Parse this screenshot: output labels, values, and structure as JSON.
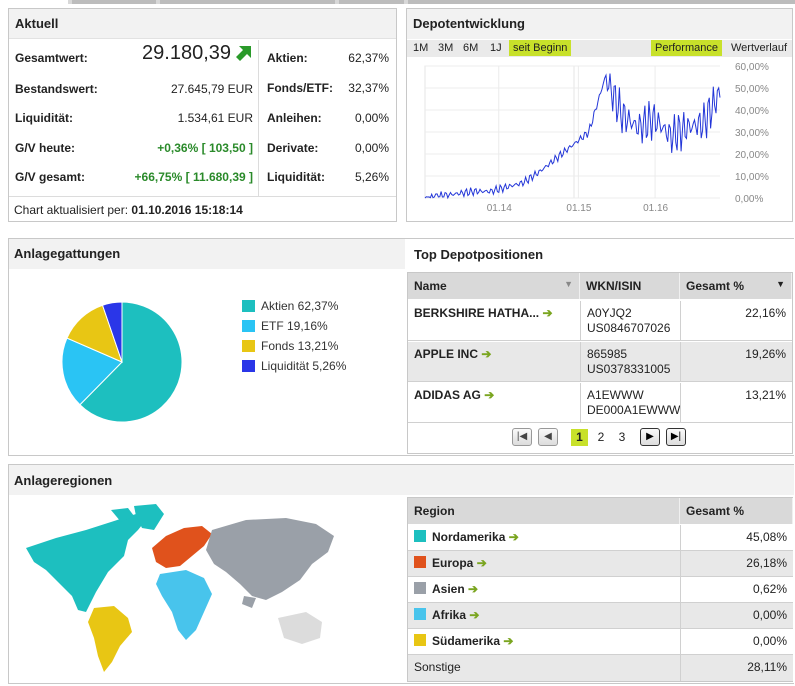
{
  "aktuell": {
    "title": "Aktuell",
    "gesamtwert_label": "Gesamtwert:",
    "gesamtwert_value": "29.180,39",
    "bestandswert_label": "Bestandswert:",
    "bestandswert_value": "27.645,79 EUR",
    "liquiditaet_label": "Liquidität:",
    "liquiditaet_value": "1.534,61 EUR",
    "gv_heute_label": "G/V heute:",
    "gv_heute_pct": "+0,36%",
    "gv_heute_abs": "[ 103,50 ]",
    "gv_gesamt_label": "G/V gesamt:",
    "gv_gesamt_pct": "+66,75%",
    "gv_gesamt_abs": "[ 11.680,39 ]",
    "alloc": [
      {
        "label": "Aktien:",
        "value": "62,37%"
      },
      {
        "label": "Fonds/ETF:",
        "value": "32,37%"
      },
      {
        "label": "Anleihen:",
        "value": "0,00%"
      },
      {
        "label": "Derivate:",
        "value": "0,00%"
      },
      {
        "label": "Liquidität:",
        "value": "5,26%"
      }
    ],
    "chart_updated_label": "Chart aktualisiert per:",
    "chart_updated_value": "01.10.2016 15:18:14"
  },
  "depotentwicklung": {
    "title": "Depotentwicklung",
    "periods": [
      "1M",
      "3M",
      "6M",
      "1J",
      "seit Beginn"
    ],
    "active_period": "seit Beginn",
    "modes": [
      "Performance",
      "Wertverlauf"
    ],
    "active_mode": "Performance",
    "y_ticks": [
      "60,00%",
      "50,00%",
      "40,00%",
      "30,00%",
      "20,00%",
      "10,00%",
      "0,00%"
    ],
    "x_ticks": [
      "01.14",
      "01.15",
      "01.16"
    ]
  },
  "anlagegattungen": {
    "title": "Anlagegattungen",
    "items": [
      {
        "label": "Aktien 62,37%",
        "color": "#1dbfbf"
      },
      {
        "label": "ETF 19,16%",
        "color": "#2ac4f4"
      },
      {
        "label": "Fonds 13,21%",
        "color": "#e8c614"
      },
      {
        "label": "Liquidität 5,26%",
        "color": "#2a36e8"
      }
    ]
  },
  "chart_data": [
    {
      "type": "pie",
      "title": "Anlagegattungen",
      "categories": [
        "Aktien",
        "ETF",
        "Fonds",
        "Liquidität"
      ],
      "values": [
        62.37,
        19.16,
        13.21,
        5.26
      ],
      "colors": [
        "#1dbfbf",
        "#2ac4f4",
        "#e8c614",
        "#2a36e8"
      ]
    },
    {
      "type": "line",
      "title": "Depotentwicklung",
      "xlabel": "",
      "ylabel": "",
      "ylim": [
        0,
        60
      ],
      "x": [
        "2013-09",
        "2013-11",
        "2014-01",
        "2014-03",
        "2014-05",
        "2014-07",
        "2014-09",
        "2014-11",
        "2015-01",
        "2015-03",
        "2015-05",
        "2015-07",
        "2015-09",
        "2015-11",
        "2016-01",
        "2016-03",
        "2016-05",
        "2016-07",
        "2016-09"
      ],
      "series": [
        {
          "values": [
            0,
            1,
            2,
            3,
            3,
            5,
            7,
            12,
            18,
            24,
            30,
            55,
            38,
            32,
            36,
            28,
            32,
            34,
            48
          ]
        }
      ]
    }
  ],
  "top_positionen": {
    "title": "Top Depotpositionen",
    "headers": {
      "name": "Name",
      "wkn": "WKN/ISIN",
      "gesamt": "Gesamt %"
    },
    "rows": [
      {
        "name": "BERKSHIRE HATHA...",
        "wkn": "A0YJQ2",
        "isin": "US0846707026",
        "pct": "22,16%"
      },
      {
        "name": "APPLE INC",
        "wkn": "865985",
        "isin": "US0378331005",
        "pct": "19,26%"
      },
      {
        "name": "ADIDAS AG",
        "wkn": "A1EWWW",
        "isin": "DE000A1EWWW",
        "pct": "13,21%"
      }
    ],
    "pages": [
      "1",
      "2",
      "3"
    ],
    "current_page": "1"
  },
  "anlageregionen": {
    "title": "Anlageregionen",
    "headers": {
      "region": "Region",
      "gesamt": "Gesamt %"
    },
    "rows": [
      {
        "name": "Nordamerika",
        "pct": "45,08%",
        "color": "#1dbfbf"
      },
      {
        "name": "Europa",
        "pct": "26,18%",
        "color": "#e0521c"
      },
      {
        "name": "Asien",
        "pct": "0,62%",
        "color": "#9aa0a8"
      },
      {
        "name": "Afrika",
        "pct": "0,00%",
        "color": "#48c4ec"
      },
      {
        "name": "Südamerika",
        "pct": "0,00%",
        "color": "#e8c614"
      }
    ],
    "sonstige_label": "Sonstige",
    "sonstige_pct": "28,11%"
  }
}
